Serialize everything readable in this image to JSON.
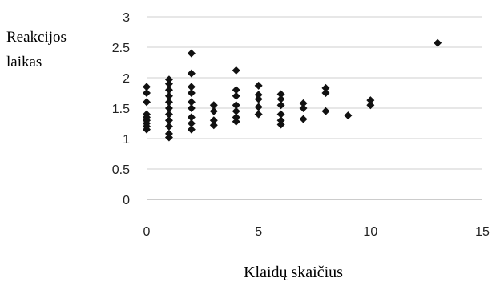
{
  "chart_data": {
    "type": "scatter",
    "ylabel_lines": [
      "Reakcijos",
      "laikas"
    ],
    "xlabel": "Klaidų skaičius",
    "xlim": [
      0,
      15
    ],
    "ylim": [
      0,
      3
    ],
    "x_ticks": [
      "0",
      "5",
      "10",
      "15"
    ],
    "y_ticks": [
      "0",
      "0.5",
      "1",
      "1.5",
      "2",
      "2.5",
      "3"
    ],
    "grid": "horizontal",
    "legend": "none",
    "marker": "diamond",
    "marker_color": "#111111",
    "points": [
      [
        0,
        1.15
      ],
      [
        0,
        1.2
      ],
      [
        0,
        1.25
      ],
      [
        0,
        1.3
      ],
      [
        0,
        1.35
      ],
      [
        0,
        1.4
      ],
      [
        0,
        1.6
      ],
      [
        0,
        1.75
      ],
      [
        0,
        1.85
      ],
      [
        1,
        1.02
      ],
      [
        1,
        1.08
      ],
      [
        1,
        1.2
      ],
      [
        1,
        1.3
      ],
      [
        1,
        1.4
      ],
      [
        1,
        1.5
      ],
      [
        1,
        1.6
      ],
      [
        1,
        1.7
      ],
      [
        1,
        1.8
      ],
      [
        1,
        1.9
      ],
      [
        1,
        1.97
      ],
      [
        2,
        1.15
      ],
      [
        2,
        1.25
      ],
      [
        2,
        1.35
      ],
      [
        2,
        1.5
      ],
      [
        2,
        1.6
      ],
      [
        2,
        1.75
      ],
      [
        2,
        1.85
      ],
      [
        2,
        2.07
      ],
      [
        2,
        2.4
      ],
      [
        3,
        1.22
      ],
      [
        3,
        1.3
      ],
      [
        3,
        1.45
      ],
      [
        3,
        1.55
      ],
      [
        4,
        1.28
      ],
      [
        4,
        1.35
      ],
      [
        4,
        1.45
      ],
      [
        4,
        1.55
      ],
      [
        4,
        1.7
      ],
      [
        4,
        1.8
      ],
      [
        4,
        2.12
      ],
      [
        5,
        1.4
      ],
      [
        5,
        1.52
      ],
      [
        5,
        1.65
      ],
      [
        5,
        1.72
      ],
      [
        5,
        1.87
      ],
      [
        6,
        1.23
      ],
      [
        6,
        1.3
      ],
      [
        6,
        1.4
      ],
      [
        6,
        1.55
      ],
      [
        6,
        1.65
      ],
      [
        6,
        1.73
      ],
      [
        7,
        1.32
      ],
      [
        7,
        1.5
      ],
      [
        7,
        1.58
      ],
      [
        8,
        1.45
      ],
      [
        8,
        1.75
      ],
      [
        8,
        1.83
      ],
      [
        9,
        1.38
      ],
      [
        10,
        1.55
      ],
      [
        10,
        1.63
      ],
      [
        13,
        2.57
      ]
    ]
  }
}
